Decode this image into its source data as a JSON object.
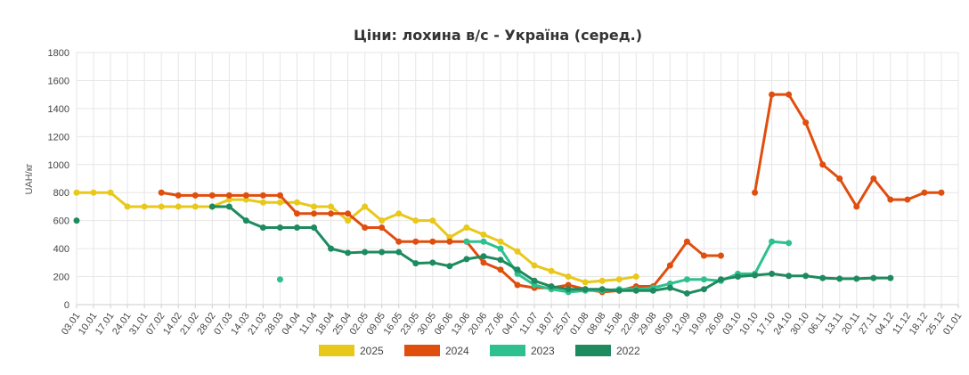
{
  "chart_data": {
    "type": "line",
    "title": "Ціни: лохина в/с - Україна (серед.)",
    "ylabel": "UAH/кг",
    "xlabel": "",
    "ylim": [
      0,
      1800
    ],
    "yticks": [
      0,
      200,
      400,
      600,
      800,
      1000,
      1200,
      1400,
      1600,
      1800
    ],
    "grid": true,
    "legend_position": "bottom",
    "categories": [
      "03.01",
      "10.01",
      "17.01",
      "24.01",
      "31.01",
      "07.02",
      "14.02",
      "21.02",
      "28.02",
      "07.03",
      "14.03",
      "21.03",
      "28.03",
      "04.04",
      "11.04",
      "18.04",
      "25.04",
      "02.05",
      "09.05",
      "16.05",
      "23.05",
      "30.05",
      "06.06",
      "13.06",
      "20.06",
      "27.06",
      "04.07",
      "11.07",
      "18.07",
      "25.07",
      "01.08",
      "08.08",
      "15.08",
      "22.08",
      "29.08",
      "05.09",
      "12.09",
      "19.09",
      "26.09",
      "03.10",
      "10.10",
      "17.10",
      "24.10",
      "30.10",
      "06.11",
      "13.11",
      "20.11",
      "27.11",
      "04.12",
      "11.12",
      "18.12",
      "25.12",
      "01.01"
    ],
    "series": [
      {
        "name": "2025",
        "color": "#e8c81b",
        "points": [
          {
            "x": 0,
            "y": 800
          },
          {
            "x": 1,
            "y": 800
          },
          {
            "x": 2,
            "y": 800
          },
          {
            "x": 3,
            "y": 700
          },
          {
            "x": 4,
            "y": 700
          },
          {
            "x": 5,
            "y": 700
          },
          {
            "x": 6,
            "y": 700
          },
          {
            "x": 7,
            "y": 700
          },
          {
            "x": 8,
            "y": 700
          },
          {
            "x": 9,
            "y": 750
          },
          {
            "x": 10,
            "y": 750
          },
          {
            "x": 11,
            "y": 730
          },
          {
            "x": 12,
            "y": 730
          },
          {
            "x": 13,
            "y": 730
          },
          {
            "x": 14,
            "y": 700
          },
          {
            "x": 15,
            "y": 700
          },
          {
            "x": 16,
            "y": 600
          },
          {
            "x": 17,
            "y": 700
          },
          {
            "x": 18,
            "y": 600
          },
          {
            "x": 19,
            "y": 650
          },
          {
            "x": 20,
            "y": 600
          },
          {
            "x": 21,
            "y": 600
          },
          {
            "x": 22,
            "y": 480
          },
          {
            "x": 23,
            "y": 550
          },
          {
            "x": 24,
            "y": 500
          },
          {
            "x": 25,
            "y": 450
          },
          {
            "x": 26,
            "y": 380
          },
          {
            "x": 27,
            "y": 280
          },
          {
            "x": 28,
            "y": 240
          },
          {
            "x": 29,
            "y": 200
          },
          {
            "x": 30,
            "y": 160
          },
          {
            "x": 31,
            "y": 170
          },
          {
            "x": 32,
            "y": 180
          },
          {
            "x": 33,
            "y": 200
          }
        ]
      },
      {
        "name": "2024",
        "color": "#e04e0e",
        "points": [
          {
            "x": 5,
            "y": 800
          },
          {
            "x": 6,
            "y": 780
          },
          {
            "x": 7,
            "y": 780
          },
          {
            "x": 8,
            "y": 780
          },
          {
            "x": 9,
            "y": 780
          },
          {
            "x": 10,
            "y": 780
          },
          {
            "x": 11,
            "y": 780
          },
          {
            "x": 12,
            "y": 780
          },
          {
            "x": 13,
            "y": 650
          },
          {
            "x": 14,
            "y": 650
          },
          {
            "x": 15,
            "y": 650
          },
          {
            "x": 16,
            "y": 650
          },
          {
            "x": 17,
            "y": 550
          },
          {
            "x": 18,
            "y": 550
          },
          {
            "x": 19,
            "y": 450
          },
          {
            "x": 20,
            "y": 450
          },
          {
            "x": 21,
            "y": 450
          },
          {
            "x": 22,
            "y": 450
          },
          {
            "x": 23,
            "y": 450
          },
          {
            "x": 24,
            "y": 300
          },
          {
            "x": 25,
            "y": 250
          },
          {
            "x": 26,
            "y": 140
          },
          {
            "x": 27,
            "y": 120
          },
          {
            "x": 28,
            "y": 120
          },
          {
            "x": 29,
            "y": 140
          },
          {
            "x": 30,
            "y": 110
          },
          {
            "x": 31,
            "y": 90
          },
          {
            "x": 32,
            "y": 100
          },
          {
            "x": 33,
            "y": 130
          },
          {
            "x": 34,
            "y": 130
          },
          {
            "x": 35,
            "y": 280
          },
          {
            "x": 36,
            "y": 450
          },
          {
            "x": 37,
            "y": 350
          },
          {
            "x": 38,
            "y": 350
          },
          {
            "x": 40,
            "y": 800,
            "break": true
          },
          {
            "x": 41,
            "y": 1500
          },
          {
            "x": 42,
            "y": 1500
          },
          {
            "x": 43,
            "y": 1300
          },
          {
            "x": 44,
            "y": 1000
          },
          {
            "x": 45,
            "y": 900
          },
          {
            "x": 46,
            "y": 700
          },
          {
            "x": 47,
            "y": 900
          },
          {
            "x": 48,
            "y": 750
          },
          {
            "x": 49,
            "y": 750
          },
          {
            "x": 50,
            "y": 800
          },
          {
            "x": 51,
            "y": 800
          }
        ]
      },
      {
        "name": "2023",
        "color": "#2ec08e",
        "points": [
          {
            "x": 12,
            "y": 180,
            "isolated": true
          },
          {
            "x": 23,
            "y": 450,
            "break": true
          },
          {
            "x": 24,
            "y": 450
          },
          {
            "x": 25,
            "y": 400
          },
          {
            "x": 26,
            "y": 220
          },
          {
            "x": 27,
            "y": 140
          },
          {
            "x": 28,
            "y": 110
          },
          {
            "x": 29,
            "y": 90
          },
          {
            "x": 30,
            "y": 100
          },
          {
            "x": 31,
            "y": 100
          },
          {
            "x": 32,
            "y": 110
          },
          {
            "x": 33,
            "y": 110
          },
          {
            "x": 34,
            "y": 120
          },
          {
            "x": 35,
            "y": 150
          },
          {
            "x": 36,
            "y": 180
          },
          {
            "x": 37,
            "y": 180
          },
          {
            "x": 38,
            "y": 170
          },
          {
            "x": 39,
            "y": 220
          },
          {
            "x": 40,
            "y": 220
          },
          {
            "x": 41,
            "y": 450
          },
          {
            "x": 42,
            "y": 440
          }
        ]
      },
      {
        "name": "2022",
        "color": "#1e8a60",
        "points": [
          {
            "x": 0,
            "y": 600,
            "isolated": true
          },
          {
            "x": 8,
            "y": 700,
            "break": true
          },
          {
            "x": 9,
            "y": 700
          },
          {
            "x": 10,
            "y": 600
          },
          {
            "x": 11,
            "y": 550
          },
          {
            "x": 12,
            "y": 550
          },
          {
            "x": 13,
            "y": 550
          },
          {
            "x": 14,
            "y": 550
          },
          {
            "x": 15,
            "y": 400
          },
          {
            "x": 16,
            "y": 370
          },
          {
            "x": 17,
            "y": 375
          },
          {
            "x": 18,
            "y": 375
          },
          {
            "x": 19,
            "y": 375
          },
          {
            "x": 20,
            "y": 295
          },
          {
            "x": 21,
            "y": 300
          },
          {
            "x": 22,
            "y": 275
          },
          {
            "x": 23,
            "y": 325
          },
          {
            "x": 24,
            "y": 345
          },
          {
            "x": 25,
            "y": 320
          },
          {
            "x": 26,
            "y": 250
          },
          {
            "x": 27,
            "y": 170
          },
          {
            "x": 28,
            "y": 130
          },
          {
            "x": 29,
            "y": 110
          },
          {
            "x": 30,
            "y": 110
          },
          {
            "x": 31,
            "y": 110
          },
          {
            "x": 32,
            "y": 100
          },
          {
            "x": 33,
            "y": 100
          },
          {
            "x": 34,
            "y": 100
          },
          {
            "x": 35,
            "y": 120
          },
          {
            "x": 36,
            "y": 80
          },
          {
            "x": 37,
            "y": 110
          },
          {
            "x": 38,
            "y": 180
          },
          {
            "x": 39,
            "y": 200
          },
          {
            "x": 40,
            "y": 210
          },
          {
            "x": 41,
            "y": 220
          },
          {
            "x": 42,
            "y": 205
          },
          {
            "x": 43,
            "y": 205
          },
          {
            "x": 44,
            "y": 190
          },
          {
            "x": 45,
            "y": 185
          },
          {
            "x": 46,
            "y": 185
          },
          {
            "x": 47,
            "y": 190
          },
          {
            "x": 48,
            "y": 190
          }
        ]
      }
    ]
  }
}
